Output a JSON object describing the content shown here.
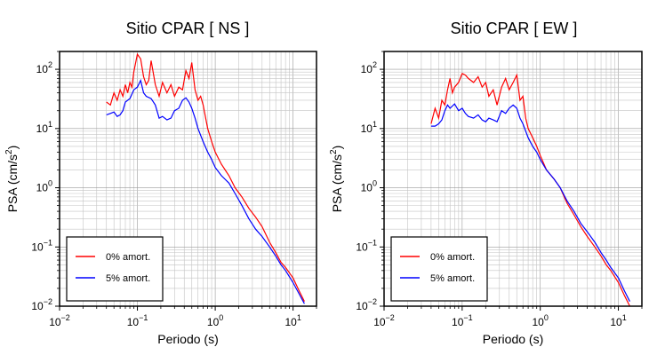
{
  "chart_data": [
    {
      "type": "line",
      "title": "Sitio CPAR [ NS ]",
      "xlabel": "Periodo (s)",
      "ylabel": "PSA (cm/s",
      "ylabel_sup": "2",
      "ylabel_close": ")",
      "x_scale": "log",
      "y_scale": "log",
      "xlim": [
        0.01,
        20
      ],
      "ylim": [
        0.01,
        200
      ],
      "x_ticks": [
        {
          "value": 0.01,
          "base": "10",
          "exp": "−2"
        },
        {
          "value": 0.1,
          "base": "10",
          "exp": "−1"
        },
        {
          "value": 1,
          "base": "10",
          "exp": "0"
        },
        {
          "value": 10,
          "base": "10",
          "exp": "1"
        }
      ],
      "y_ticks": [
        {
          "value": 0.01,
          "base": "10",
          "exp": "−2"
        },
        {
          "value": 0.1,
          "base": "10",
          "exp": "−1"
        },
        {
          "value": 1,
          "base": "10",
          "exp": "0"
        },
        {
          "value": 10,
          "base": "10",
          "exp": "1"
        },
        {
          "value": 100,
          "base": "10",
          "exp": "2"
        }
      ],
      "grid": true,
      "legend_position": "bottom-left",
      "series": [
        {
          "name": "0% amort.",
          "color": "#ff0000",
          "x": [
            0.04,
            0.045,
            0.05,
            0.055,
            0.06,
            0.065,
            0.07,
            0.075,
            0.08,
            0.085,
            0.09,
            0.1,
            0.11,
            0.12,
            0.13,
            0.14,
            0.15,
            0.17,
            0.19,
            0.21,
            0.24,
            0.27,
            0.3,
            0.34,
            0.38,
            0.42,
            0.46,
            0.5,
            0.55,
            0.6,
            0.65,
            0.7,
            0.8,
            0.9,
            1.0,
            1.2,
            1.5,
            1.8,
            2.2,
            2.7,
            3.3,
            4.0,
            5.0,
            6.0,
            7.0,
            8.0,
            10,
            12,
            14
          ],
          "y": [
            28,
            25,
            40,
            30,
            45,
            35,
            55,
            40,
            60,
            50,
            90,
            180,
            150,
            75,
            55,
            65,
            140,
            55,
            35,
            60,
            40,
            55,
            35,
            50,
            45,
            95,
            70,
            130,
            45,
            30,
            35,
            25,
            10,
            6,
            4,
            2.5,
            1.6,
            1.0,
            0.7,
            0.45,
            0.32,
            0.22,
            0.12,
            0.08,
            0.055,
            0.045,
            0.03,
            0.018,
            0.012
          ]
        },
        {
          "name": "5% amort.",
          "color": "#0000ff",
          "x": [
            0.04,
            0.045,
            0.05,
            0.055,
            0.06,
            0.065,
            0.07,
            0.08,
            0.09,
            0.1,
            0.11,
            0.12,
            0.13,
            0.15,
            0.17,
            0.19,
            0.21,
            0.24,
            0.27,
            0.3,
            0.34,
            0.38,
            0.42,
            0.46,
            0.5,
            0.55,
            0.6,
            0.7,
            0.8,
            0.9,
            1.0,
            1.2,
            1.5,
            1.8,
            2.2,
            2.7,
            3.3,
            4.0,
            5.0,
            6.0,
            7.0,
            8.0,
            10,
            12,
            14
          ],
          "y": [
            17,
            18,
            19,
            16,
            17,
            20,
            28,
            32,
            45,
            50,
            65,
            40,
            35,
            32,
            25,
            15,
            16,
            14,
            15,
            20,
            22,
            30,
            33,
            28,
            22,
            15,
            10,
            6,
            4,
            3,
            2.2,
            1.6,
            1.2,
            0.8,
            0.5,
            0.3,
            0.2,
            0.15,
            0.1,
            0.07,
            0.05,
            0.04,
            0.025,
            0.016,
            0.011
          ]
        }
      ]
    },
    {
      "type": "line",
      "title": "Sitio CPAR [ EW ]",
      "xlabel": "Periodo (s)",
      "ylabel": "PSA (cm/s",
      "ylabel_sup": "2",
      "ylabel_close": ")",
      "x_scale": "log",
      "y_scale": "log",
      "xlim": [
        0.01,
        20
      ],
      "ylim": [
        0.01,
        200
      ],
      "x_ticks": [
        {
          "value": 0.01,
          "base": "10",
          "exp": "−2"
        },
        {
          "value": 0.1,
          "base": "10",
          "exp": "−1"
        },
        {
          "value": 1,
          "base": "10",
          "exp": "0"
        },
        {
          "value": 10,
          "base": "10",
          "exp": "1"
        }
      ],
      "y_ticks": [
        {
          "value": 0.01,
          "base": "10",
          "exp": "−2"
        },
        {
          "value": 0.1,
          "base": "10",
          "exp": "−1"
        },
        {
          "value": 1,
          "base": "10",
          "exp": "0"
        },
        {
          "value": 10,
          "base": "10",
          "exp": "1"
        },
        {
          "value": 100,
          "base": "10",
          "exp": "2"
        }
      ],
      "grid": true,
      "legend_position": "bottom-left",
      "series": [
        {
          "name": "0% amort.",
          "color": "#ff0000",
          "x": [
            0.04,
            0.045,
            0.05,
            0.055,
            0.06,
            0.065,
            0.07,
            0.075,
            0.08,
            0.09,
            0.1,
            0.11,
            0.12,
            0.14,
            0.16,
            0.18,
            0.2,
            0.22,
            0.25,
            0.28,
            0.32,
            0.36,
            0.4,
            0.45,
            0.5,
            0.55,
            0.6,
            0.65,
            0.7,
            0.8,
            0.9,
            1.0,
            1.2,
            1.5,
            1.8,
            2.2,
            2.7,
            3.3,
            4.0,
            5.0,
            6.0,
            7.0,
            8.0,
            10,
            12,
            14
          ],
          "y": [
            12,
            22,
            15,
            30,
            25,
            45,
            70,
            40,
            50,
            60,
            85,
            80,
            70,
            60,
            75,
            50,
            60,
            35,
            45,
            25,
            50,
            70,
            45,
            60,
            80,
            30,
            35,
            15,
            10,
            7,
            5,
            3.5,
            2.0,
            1.4,
            1.0,
            0.55,
            0.35,
            0.22,
            0.15,
            0.1,
            0.07,
            0.05,
            0.04,
            0.025,
            0.015,
            0.01
          ]
        },
        {
          "name": "5% amort.",
          "color": "#0000ff",
          "x": [
            0.04,
            0.045,
            0.05,
            0.055,
            0.06,
            0.065,
            0.07,
            0.08,
            0.09,
            0.1,
            0.11,
            0.12,
            0.14,
            0.16,
            0.18,
            0.2,
            0.22,
            0.25,
            0.28,
            0.32,
            0.36,
            0.4,
            0.45,
            0.5,
            0.55,
            0.6,
            0.7,
            0.8,
            0.9,
            1.0,
            1.2,
            1.5,
            1.8,
            2.2,
            2.7,
            3.3,
            4.0,
            5.0,
            6.0,
            7.0,
            8.0,
            10,
            12,
            14
          ],
          "y": [
            11,
            11,
            12,
            14,
            20,
            25,
            22,
            26,
            20,
            22,
            18,
            16,
            15,
            17,
            14,
            13,
            15,
            14,
            13,
            20,
            18,
            22,
            25,
            22,
            15,
            12,
            7,
            5,
            4,
            3,
            2,
            1.4,
            1.0,
            0.6,
            0.4,
            0.25,
            0.18,
            0.12,
            0.08,
            0.06,
            0.045,
            0.03,
            0.018,
            0.012
          ]
        }
      ]
    }
  ]
}
